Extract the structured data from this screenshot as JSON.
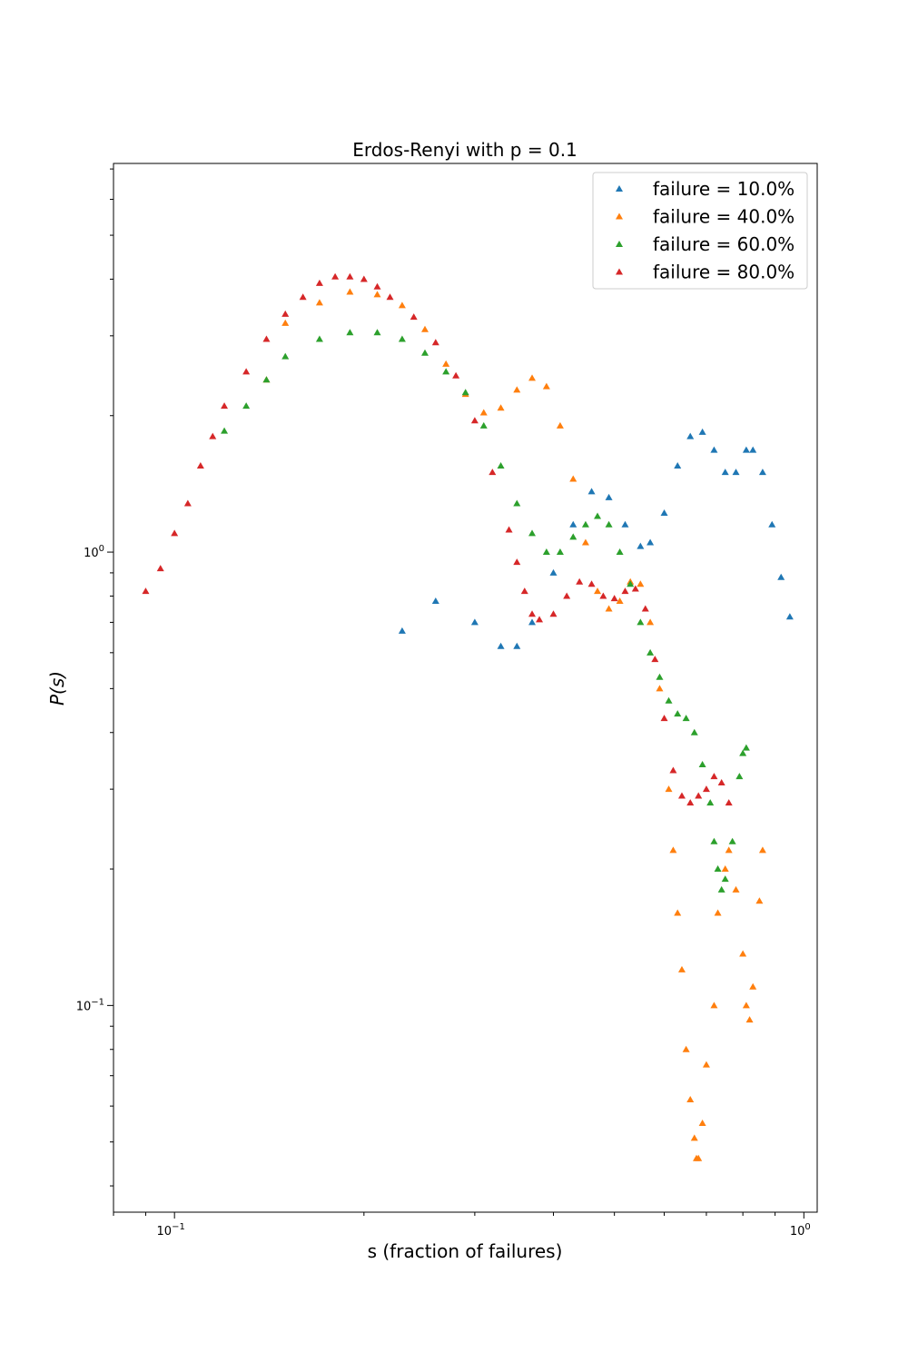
{
  "chart_data": {
    "type": "scatter",
    "title": "Erdos-Renyi with p = 0.1",
    "xlabel": "s (fraction of failures)",
    "ylabel": "P(s)",
    "xscale": "log",
    "yscale": "log",
    "xlim": [
      0.08,
      1.05
    ],
    "ylim": [
      0.035,
      7.2
    ],
    "grid": false,
    "legend_position": "top-right",
    "marker": "triangle-up",
    "x_ticks": [
      {
        "value": 0.1,
        "base": "10",
        "exp": "−1"
      },
      {
        "value": 1.0,
        "base": "10",
        "exp": "0"
      }
    ],
    "y_ticks": [
      {
        "value": 0.1,
        "base": "10",
        "exp": "−1"
      },
      {
        "value": 1.0,
        "base": "10",
        "exp": "0"
      }
    ],
    "series": [
      {
        "name": "failure = 10.0%",
        "color": "#1f77b4",
        "points": [
          [
            0.23,
            0.67
          ],
          [
            0.26,
            0.78
          ],
          [
            0.3,
            0.7
          ],
          [
            0.33,
            0.62
          ],
          [
            0.35,
            0.62
          ],
          [
            0.37,
            0.7
          ],
          [
            0.4,
            0.9
          ],
          [
            0.43,
            1.15
          ],
          [
            0.46,
            1.36
          ],
          [
            0.49,
            1.32
          ],
          [
            0.52,
            1.15
          ],
          [
            0.55,
            1.03
          ],
          [
            0.57,
            1.05
          ],
          [
            0.6,
            1.22
          ],
          [
            0.63,
            1.55
          ],
          [
            0.66,
            1.8
          ],
          [
            0.69,
            1.84
          ],
          [
            0.72,
            1.68
          ],
          [
            0.75,
            1.5
          ],
          [
            0.78,
            1.5
          ],
          [
            0.81,
            1.68
          ],
          [
            0.83,
            1.68
          ],
          [
            0.86,
            1.5
          ],
          [
            0.89,
            1.15
          ],
          [
            0.92,
            0.88
          ],
          [
            0.95,
            0.72
          ]
        ]
      },
      {
        "name": "failure = 40.0%",
        "color": "#ff7f0e",
        "points": [
          [
            0.14,
            2.4
          ],
          [
            0.15,
            3.2
          ],
          [
            0.17,
            3.55
          ],
          [
            0.19,
            3.75
          ],
          [
            0.21,
            3.7
          ],
          [
            0.23,
            3.5
          ],
          [
            0.25,
            3.1
          ],
          [
            0.27,
            2.6
          ],
          [
            0.29,
            2.23
          ],
          [
            0.31,
            2.03
          ],
          [
            0.33,
            2.08
          ],
          [
            0.35,
            2.28
          ],
          [
            0.37,
            2.42
          ],
          [
            0.39,
            2.32
          ],
          [
            0.41,
            1.9
          ],
          [
            0.43,
            1.45
          ],
          [
            0.45,
            1.05
          ],
          [
            0.47,
            0.82
          ],
          [
            0.49,
            0.75
          ],
          [
            0.51,
            0.78
          ],
          [
            0.53,
            0.86
          ],
          [
            0.55,
            0.85
          ],
          [
            0.57,
            0.7
          ],
          [
            0.59,
            0.5
          ],
          [
            0.61,
            0.3
          ],
          [
            0.62,
            0.22
          ],
          [
            0.63,
            0.16
          ],
          [
            0.64,
            0.12
          ],
          [
            0.65,
            0.08
          ],
          [
            0.66,
            0.062
          ],
          [
            0.67,
            0.051
          ],
          [
            0.675,
            0.046
          ],
          [
            0.68,
            0.046
          ],
          [
            0.69,
            0.055
          ],
          [
            0.7,
            0.074
          ],
          [
            0.72,
            0.1
          ],
          [
            0.73,
            0.16
          ],
          [
            0.75,
            0.2
          ],
          [
            0.76,
            0.22
          ],
          [
            0.78,
            0.18
          ],
          [
            0.8,
            0.13
          ],
          [
            0.81,
            0.1
          ],
          [
            0.82,
            0.093
          ],
          [
            0.83,
            0.11
          ],
          [
            0.85,
            0.17
          ],
          [
            0.86,
            0.22
          ]
        ]
      },
      {
        "name": "failure = 60.0%",
        "color": "#2ca02c",
        "points": [
          [
            0.12,
            1.85
          ],
          [
            0.13,
            2.1
          ],
          [
            0.14,
            2.4
          ],
          [
            0.15,
            2.7
          ],
          [
            0.17,
            2.95
          ],
          [
            0.19,
            3.05
          ],
          [
            0.21,
            3.05
          ],
          [
            0.23,
            2.95
          ],
          [
            0.25,
            2.75
          ],
          [
            0.27,
            2.5
          ],
          [
            0.29,
            2.25
          ],
          [
            0.31,
            1.9
          ],
          [
            0.33,
            1.55
          ],
          [
            0.35,
            1.28
          ],
          [
            0.37,
            1.1
          ],
          [
            0.39,
            1.0
          ],
          [
            0.41,
            1.0
          ],
          [
            0.43,
            1.08
          ],
          [
            0.45,
            1.15
          ],
          [
            0.47,
            1.2
          ],
          [
            0.49,
            1.15
          ],
          [
            0.51,
            1.0
          ],
          [
            0.53,
            0.85
          ],
          [
            0.55,
            0.7
          ],
          [
            0.57,
            0.6
          ],
          [
            0.59,
            0.53
          ],
          [
            0.61,
            0.47
          ],
          [
            0.63,
            0.44
          ],
          [
            0.65,
            0.43
          ],
          [
            0.67,
            0.4
          ],
          [
            0.69,
            0.34
          ],
          [
            0.71,
            0.28
          ],
          [
            0.72,
            0.23
          ],
          [
            0.73,
            0.2
          ],
          [
            0.74,
            0.18
          ],
          [
            0.75,
            0.19
          ],
          [
            0.77,
            0.23
          ],
          [
            0.79,
            0.32
          ],
          [
            0.8,
            0.36
          ],
          [
            0.81,
            0.37
          ]
        ]
      },
      {
        "name": "failure = 80.0%",
        "color": "#d62728",
        "points": [
          [
            0.09,
            0.82
          ],
          [
            0.095,
            0.92
          ],
          [
            0.1,
            1.1
          ],
          [
            0.105,
            1.28
          ],
          [
            0.11,
            1.55
          ],
          [
            0.115,
            1.8
          ],
          [
            0.12,
            2.1
          ],
          [
            0.13,
            2.5
          ],
          [
            0.14,
            2.95
          ],
          [
            0.15,
            3.35
          ],
          [
            0.16,
            3.65
          ],
          [
            0.17,
            3.92
          ],
          [
            0.18,
            4.05
          ],
          [
            0.19,
            4.05
          ],
          [
            0.2,
            4.0
          ],
          [
            0.21,
            3.85
          ],
          [
            0.22,
            3.65
          ],
          [
            0.24,
            3.3
          ],
          [
            0.26,
            2.9
          ],
          [
            0.28,
            2.45
          ],
          [
            0.3,
            1.95
          ],
          [
            0.32,
            1.5
          ],
          [
            0.34,
            1.12
          ],
          [
            0.35,
            0.95
          ],
          [
            0.36,
            0.82
          ],
          [
            0.37,
            0.73
          ],
          [
            0.38,
            0.71
          ],
          [
            0.4,
            0.73
          ],
          [
            0.42,
            0.8
          ],
          [
            0.44,
            0.86
          ],
          [
            0.46,
            0.85
          ],
          [
            0.48,
            0.8
          ],
          [
            0.5,
            0.79
          ],
          [
            0.52,
            0.82
          ],
          [
            0.54,
            0.83
          ],
          [
            0.56,
            0.75
          ],
          [
            0.58,
            0.58
          ],
          [
            0.6,
            0.43
          ],
          [
            0.62,
            0.33
          ],
          [
            0.64,
            0.29
          ],
          [
            0.66,
            0.28
          ],
          [
            0.68,
            0.29
          ],
          [
            0.7,
            0.3
          ],
          [
            0.72,
            0.32
          ],
          [
            0.74,
            0.31
          ],
          [
            0.76,
            0.28
          ]
        ]
      }
    ]
  }
}
